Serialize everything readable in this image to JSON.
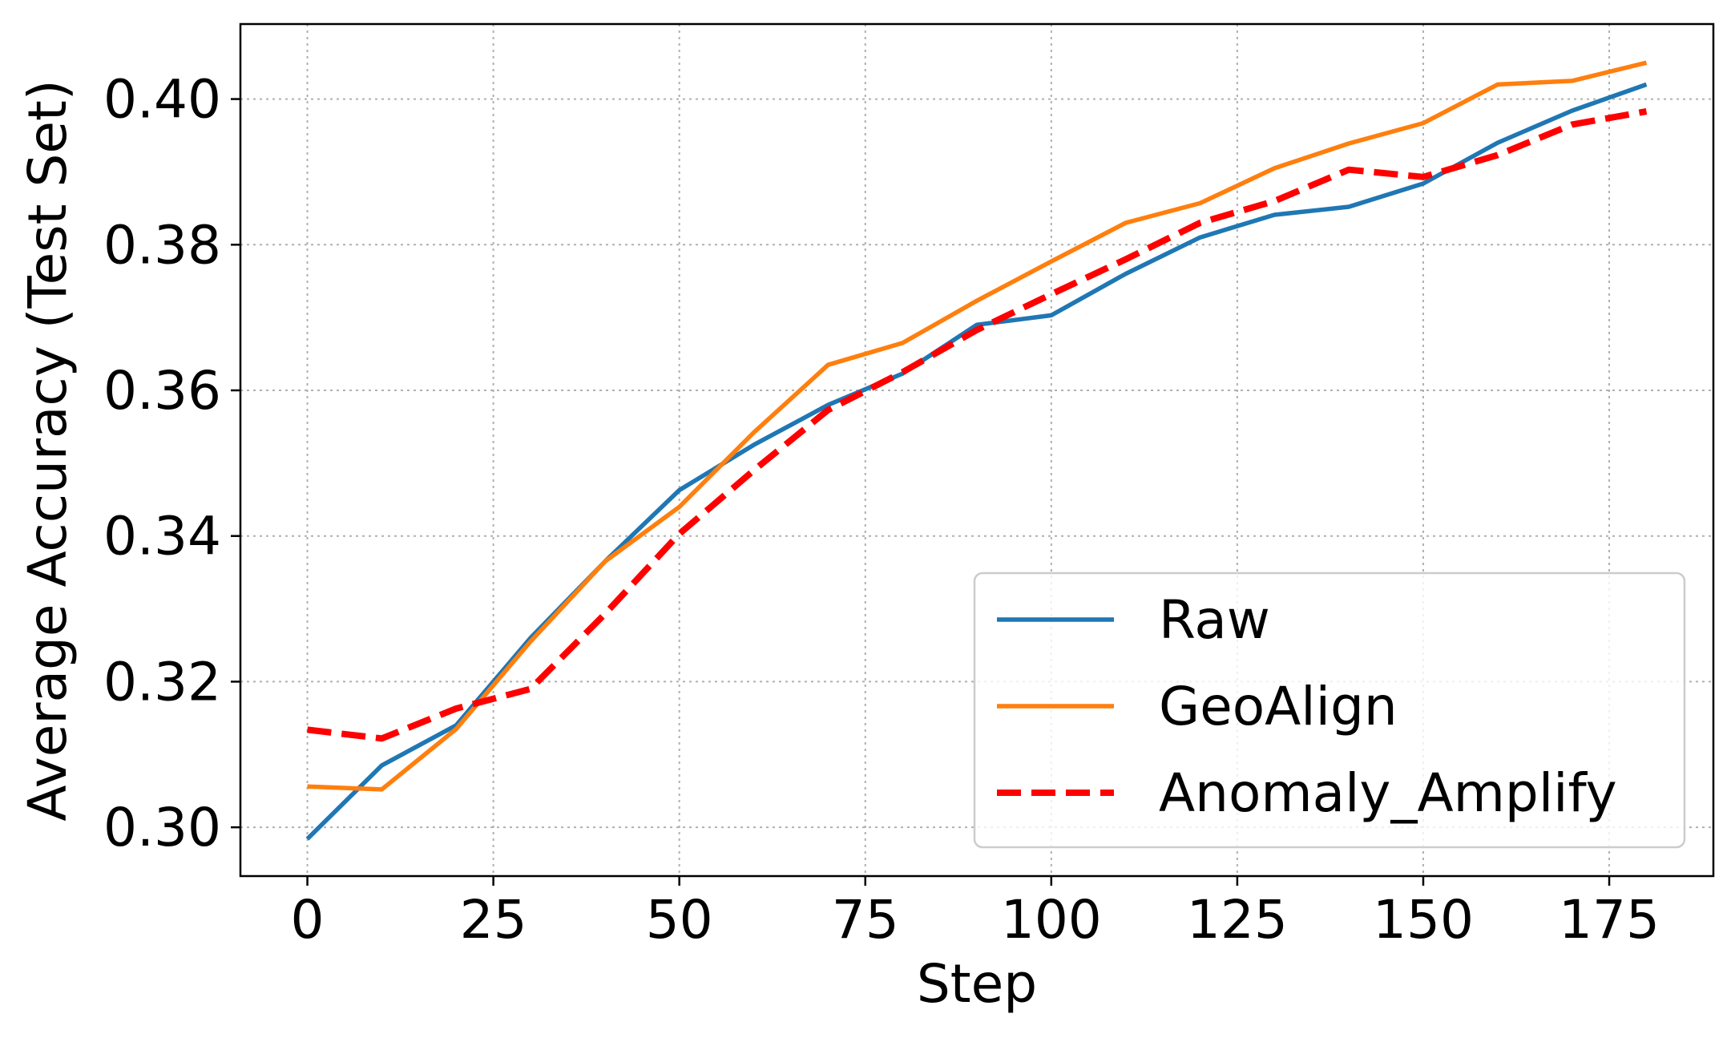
{
  "chart_data": {
    "type": "line",
    "xlabel": "Step",
    "ylabel": "Average Accuracy (Test Set)",
    "xlim": [
      -9,
      189
    ],
    "ylim": [
      0.2933,
      0.4103
    ],
    "xticks": [
      0,
      25,
      50,
      75,
      100,
      125,
      150,
      175
    ],
    "yticks": [
      0.3,
      0.32,
      0.34,
      0.36,
      0.38,
      0.4
    ],
    "ytick_labels": [
      "0.30",
      "0.32",
      "0.34",
      "0.36",
      "0.38",
      "0.40"
    ],
    "grid": true,
    "legend_position": "lower-right",
    "x": [
      0,
      10,
      20,
      30,
      40,
      50,
      60,
      70,
      80,
      90,
      100,
      110,
      120,
      130,
      140,
      150,
      160,
      170,
      180
    ],
    "series": [
      {
        "name": "Raw",
        "color": "#1f77b4",
        "style": "solid",
        "values": [
          0.2984,
          0.3085,
          0.314,
          0.326,
          0.3365,
          0.3463,
          0.3525,
          0.358,
          0.3623,
          0.369,
          0.3703,
          0.376,
          0.381,
          0.3841,
          0.3852,
          0.3884,
          0.394,
          0.3984,
          0.402
        ]
      },
      {
        "name": "GeoAlign",
        "color": "#ff7f0e",
        "style": "solid",
        "values": [
          0.3056,
          0.3052,
          0.3135,
          0.3255,
          0.3365,
          0.344,
          0.3542,
          0.3635,
          0.3665,
          0.3723,
          0.3777,
          0.383,
          0.3857,
          0.3905,
          0.3939,
          0.3967,
          0.402,
          0.4025,
          0.405
        ]
      },
      {
        "name": "Anomaly_Amplify",
        "color": "#ff0000",
        "style": "dashed",
        "values": [
          0.3134,
          0.3122,
          0.3163,
          0.319,
          0.3293,
          0.3403,
          0.349,
          0.3573,
          0.3625,
          0.3683,
          0.3732,
          0.378,
          0.383,
          0.386,
          0.3903,
          0.3893,
          0.3923,
          0.3965,
          0.3983
        ]
      }
    ]
  }
}
